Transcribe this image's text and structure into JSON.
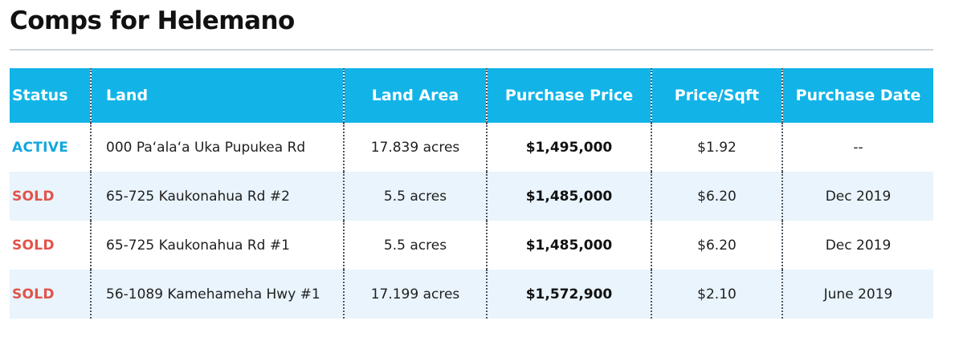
{
  "page": {
    "title": "Comps for Helemano"
  },
  "colors": {
    "header_bg": "#12b4e8",
    "header_text": "#ffffff",
    "row_alt_bg": "#e9f4fc",
    "status_active": "#12a6de",
    "status_sold": "#e2534b",
    "divider": "#4a5560"
  },
  "table": {
    "headers": {
      "status": "Status",
      "land": "Land",
      "land_area": "Land Area",
      "purchase_price": "Purchase Price",
      "price_sqft": "Price/Sqft",
      "purchase_date": "Purchase Date"
    },
    "rows": [
      {
        "status": "ACTIVE",
        "status_type": "active",
        "land": "000 Pa‘ala‘a Uka Pupukea Rd",
        "land_area": "17.839 acres",
        "purchase_price": "$1,495,000",
        "price_sqft": "$1.92",
        "purchase_date": "--"
      },
      {
        "status": "SOLD",
        "status_type": "sold",
        "land": "65-725 Kaukonahua Rd #2",
        "land_area": "5.5 acres",
        "purchase_price": "$1,485,000",
        "price_sqft": "$6.20",
        "purchase_date": "Dec 2019"
      },
      {
        "status": "SOLD",
        "status_type": "sold",
        "land": "65-725 Kaukonahua Rd #1",
        "land_area": "5.5 acres",
        "purchase_price": "$1,485,000",
        "price_sqft": "$6.20",
        "purchase_date": "Dec 2019"
      },
      {
        "status": "SOLD",
        "status_type": "sold",
        "land": "56-1089 Kamehameha Hwy  #1",
        "land_area": "17.199 acres",
        "purchase_price": "$1,572,900",
        "price_sqft": "$2.10",
        "purchase_date": "June 2019"
      }
    ]
  }
}
